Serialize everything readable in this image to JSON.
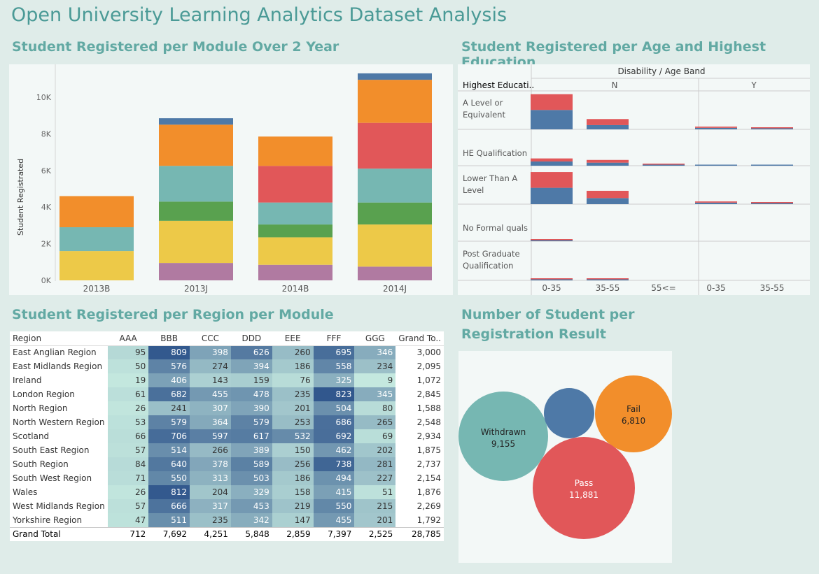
{
  "dashboard": {
    "title": "Open University Learning Analytics Dataset Analysis",
    "sections": {
      "module": "Student Registered per Module Over 2 Year",
      "age": "Student Registered per Age and Highest Education",
      "region": "Student Registered per Region per Module",
      "result_line1": "Number of Student per",
      "result_line2": "Registration Result"
    }
  },
  "module_chart": {
    "ylabel": "Student Registrated",
    "ticks": [
      "0K",
      "2K",
      "4K",
      "6K",
      "8K",
      "10K"
    ],
    "categories": [
      "2013B",
      "2013J",
      "2014B",
      "2014J"
    ]
  },
  "age_chart": {
    "column_header": "Disability / Age Band",
    "row_header": "Highest Educati..",
    "groups": [
      "N",
      "Y"
    ],
    "rows": [
      [
        "A Level or",
        "Equivalent"
      ],
      [
        "HE Qualification",
        ""
      ],
      [
        "Lower Than A",
        "Level"
      ],
      [
        "No Formal quals",
        ""
      ],
      [
        "Post Graduate",
        "Qualification"
      ]
    ],
    "x_labels": [
      "0-35",
      "35-55",
      "55<=",
      "0-35",
      "35-55"
    ]
  },
  "region_table": {
    "headers": [
      "Region",
      "AAA",
      "BBB",
      "CCC",
      "DDD",
      "EEE",
      "FFF",
      "GGG",
      "Grand To.."
    ],
    "rows": [
      {
        "region": "East Anglian Region",
        "values": [
          "95",
          "809",
          "398",
          "626",
          "260",
          "695",
          "346"
        ],
        "total": "3,000"
      },
      {
        "region": "East Midlands Region",
        "values": [
          "50",
          "576",
          "274",
          "394",
          "186",
          "558",
          "234"
        ],
        "total": "2,095"
      },
      {
        "region": "Ireland",
        "values": [
          "19",
          "406",
          "143",
          "159",
          "76",
          "325",
          "9"
        ],
        "total": "1,072"
      },
      {
        "region": "London Region",
        "values": [
          "61",
          "682",
          "455",
          "478",
          "235",
          "823",
          "345"
        ],
        "total": "2,845"
      },
      {
        "region": "North Region",
        "values": [
          "26",
          "241",
          "307",
          "390",
          "201",
          "504",
          "80"
        ],
        "total": "1,588"
      },
      {
        "region": "North Western Region",
        "values": [
          "53",
          "579",
          "364",
          "579",
          "253",
          "686",
          "265"
        ],
        "total": "2,548"
      },
      {
        "region": "Scotland",
        "values": [
          "66",
          "706",
          "597",
          "617",
          "532",
          "692",
          "69"
        ],
        "total": "2,934"
      },
      {
        "region": "South East Region",
        "values": [
          "57",
          "514",
          "266",
          "389",
          "150",
          "462",
          "202"
        ],
        "total": "1,875"
      },
      {
        "region": "South Region",
        "values": [
          "84",
          "640",
          "378",
          "589",
          "256",
          "738",
          "281"
        ],
        "total": "2,737"
      },
      {
        "region": "South West Region",
        "values": [
          "71",
          "550",
          "313",
          "503",
          "186",
          "494",
          "227"
        ],
        "total": "2,154"
      },
      {
        "region": "Wales",
        "values": [
          "26",
          "812",
          "204",
          "329",
          "158",
          "415",
          "51"
        ],
        "total": "1,876"
      },
      {
        "region": "West Midlands Region",
        "values": [
          "57",
          "666",
          "317",
          "453",
          "219",
          "550",
          "215"
        ],
        "total": "2,269"
      },
      {
        "region": "Yorkshire Region",
        "values": [
          "47",
          "511",
          "235",
          "342",
          "147",
          "455",
          "201"
        ],
        "total": "1,792"
      }
    ],
    "grand_total": {
      "label": "Grand Total",
      "values": [
        "712",
        "7,692",
        "4,251",
        "5,848",
        "2,859",
        "7,397",
        "2,525"
      ],
      "total": "28,785"
    }
  },
  "result_bubbles": [
    {
      "name": "Withdrawn",
      "value": "9,155",
      "color": "#76b7b2"
    },
    {
      "name": "",
      "value": "",
      "color": "#4e79a7"
    },
    {
      "name": "Fail",
      "value": "6,810",
      "color": "#f28e2b"
    },
    {
      "name": "Pass",
      "value": "11,881",
      "color": "#e15759"
    }
  ],
  "chart_data": [
    {
      "type": "bar",
      "stacked": true,
      "title": "Student Registered per Module Over 2 Year",
      "ylabel": "Student Registrated",
      "xlabel": "",
      "categories": [
        "2013B",
        "2013J",
        "2014B",
        "2014J"
      ],
      "ylim": [
        0,
        11500
      ],
      "colors": [
        "#b07aa1",
        "#edc948",
        "#59a14f",
        "#76b7b2",
        "#e15759",
        "#f28e2b",
        "#4e79a7"
      ],
      "series": [
        {
          "values": [
            0,
            950,
            850,
            750
          ]
        },
        {
          "values": [
            1600,
            2300,
            1500,
            2300
          ]
        },
        {
          "values": [
            0,
            1050,
            700,
            1200
          ]
        },
        {
          "values": [
            1300,
            1950,
            1200,
            1850
          ]
        },
        {
          "values": [
            0,
            0,
            2000,
            2500
          ]
        },
        {
          "values": [
            1700,
            2250,
            1600,
            2350
          ]
        },
        {
          "values": [
            0,
            350,
            0,
            350
          ]
        }
      ]
    },
    {
      "type": "bar",
      "stacked": true,
      "title": "Student Registered per Age and Highest Education",
      "columns": [
        "N 0-35",
        "N 35-55",
        "N 55<=",
        "Y 0-35",
        "Y 35-55"
      ],
      "rows": [
        "A Level or Equivalent",
        "HE Qualification",
        "Lower Than A Level",
        "No Formal quals",
        "Post Graduate Qualification"
      ],
      "colors": [
        "#4e79a7",
        "#e15759"
      ],
      "row_max": 6000,
      "series": [
        {
          "values": [
            [
              3200,
              700,
              0,
              250,
              60
            ],
            [
              700,
              500,
              10,
              80,
              20
            ],
            [
              2700,
              1000,
              0,
              250,
              60
            ],
            [
              120,
              0,
              0,
              0,
              0
            ],
            [
              50,
              30,
              0,
              0,
              0
            ]
          ]
        },
        {
          "values": [
            [
              2600,
              1000,
              0,
              200,
              60
            ],
            [
              500,
              450,
              60,
              0,
              0
            ],
            [
              2600,
              1200,
              0,
              200,
              60
            ],
            [
              100,
              0,
              0,
              0,
              0
            ],
            [
              80,
              80,
              0,
              0,
              0
            ]
          ]
        }
      ]
    }
  ]
}
